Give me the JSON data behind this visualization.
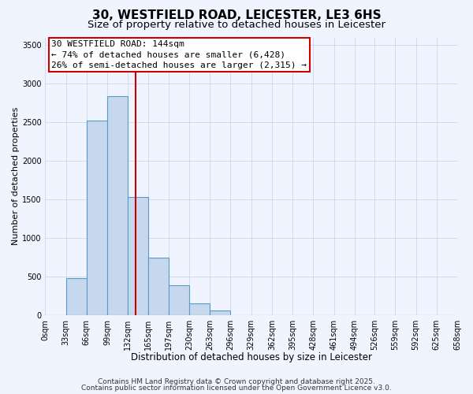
{
  "title": "30, WESTFIELD ROAD, LEICESTER, LE3 6HS",
  "subtitle": "Size of property relative to detached houses in Leicester",
  "xlabel": "Distribution of detached houses by size in Leicester",
  "ylabel": "Number of detached properties",
  "bar_edges": [
    0,
    33,
    66,
    99,
    132,
    165,
    197,
    230,
    263,
    296,
    329,
    362,
    395,
    428,
    461,
    494,
    526,
    559,
    592,
    625,
    658
  ],
  "bar_heights": [
    0,
    480,
    2520,
    2840,
    1530,
    750,
    390,
    150,
    65,
    0,
    0,
    0,
    0,
    0,
    0,
    0,
    0,
    0,
    0,
    0
  ],
  "bar_color": "#c5d8ed",
  "bar_edge_color": "#5a9ac8",
  "vline_x": 144,
  "vline_color": "#cc0000",
  "annotation_text": "30 WESTFIELD ROAD: 144sqm\n← 74% of detached houses are smaller (6,428)\n26% of semi-detached houses are larger (2,315) →",
  "annotation_box_color": "#ffffff",
  "annotation_box_edge": "#cc0000",
  "ylim": [
    0,
    3600
  ],
  "yticks": [
    0,
    500,
    1000,
    1500,
    2000,
    2500,
    3000,
    3500
  ],
  "tick_labels": [
    "0sqm",
    "33sqm",
    "66sqm",
    "99sqm",
    "132sqm",
    "165sqm",
    "197sqm",
    "230sqm",
    "263sqm",
    "296sqm",
    "329sqm",
    "362sqm",
    "395sqm",
    "428sqm",
    "461sqm",
    "494sqm",
    "526sqm",
    "559sqm",
    "592sqm",
    "625sqm",
    "658sqm"
  ],
  "footer1": "Contains HM Land Registry data © Crown copyright and database right 2025.",
  "footer2": "Contains public sector information licensed under the Open Government Licence v3.0.",
  "background_color": "#f0f4ff",
  "grid_color": "#c8d8ec",
  "title_fontsize": 11,
  "subtitle_fontsize": 9.5,
  "xlabel_fontsize": 8.5,
  "ylabel_fontsize": 8,
  "tick_fontsize": 7,
  "annotation_fontsize": 8,
  "footer_fontsize": 6.5
}
